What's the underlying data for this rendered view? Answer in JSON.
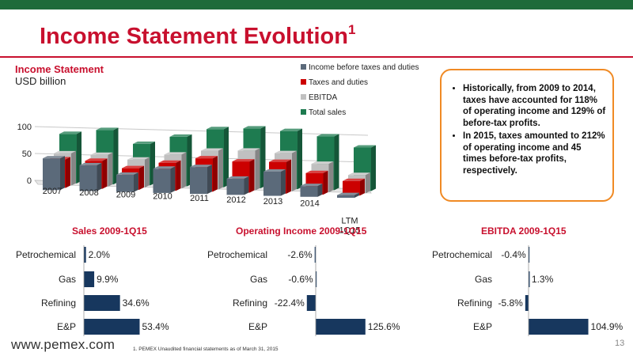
{
  "slide": {
    "title": "Income Statement Evolution",
    "title_superscript": "1",
    "footer_url": "www.pemex.com",
    "footnote": "1.    PEMEX Unaudited financial statements as of March 31, 2015",
    "page_number": "13"
  },
  "colors": {
    "header_bar": "#1e6b3a",
    "title_red": "#c8102e",
    "callout_border": "#f08a24",
    "bar_navy": "#17375e"
  },
  "callout": {
    "bullets": [
      "Historically, from 2009 to 2014, taxes have accounted for 118% of operating income and 129% of before-tax profits.",
      "In 2015, taxes amounted to 212% of operating income and 45 times before-tax profits, respectively."
    ]
  },
  "chart_data": [
    {
      "type": "bar",
      "subtype": "3d-clustered",
      "title": "Income Statement",
      "ylabel": "USD billion",
      "ylim": [
        0,
        100
      ],
      "yticks": [
        "0",
        "50",
        "100"
      ],
      "categories": [
        "2007",
        "2008",
        "2009",
        "2010",
        "2011",
        "2012",
        "2013",
        "2014",
        "LTM 1Q15"
      ],
      "series": [
        {
          "name": "Income before taxes and duties",
          "color": "#5b6a7a",
          "values": [
            59,
            48,
            32,
            45,
            50,
            30,
            45,
            20,
            5
          ]
        },
        {
          "name": "Taxes and duties",
          "color": "#cc0000",
          "values": [
            53,
            52,
            40,
            52,
            62,
            58,
            59,
            40,
            27
          ]
        },
        {
          "name": "EBITDA",
          "color": "#c0c0c0",
          "values": [
            60,
            59,
            52,
            63,
            72,
            74,
            71,
            53,
            34
          ]
        },
        {
          "name": "Total sales",
          "color": "#1e7b50",
          "values": [
            92,
            101,
            77,
            92,
            108,
            111,
            108,
            100,
            81
          ]
        }
      ],
      "legend_position": "top-right"
    },
    {
      "type": "bar",
      "orientation": "horizontal",
      "title": "Sales 2009-1Q15",
      "categories": [
        "Petrochemical",
        "Gas",
        "Refining",
        "E&P"
      ],
      "values": [
        2.0,
        9.9,
        34.6,
        53.4
      ],
      "labels": [
        "2.0%",
        "9.9%",
        "34.6%",
        "53.4%"
      ]
    },
    {
      "type": "bar",
      "orientation": "horizontal",
      "title": "Operating Income 2009-1Q15",
      "categories": [
        "Petrochemical",
        "Gas",
        "Refining",
        "E&P"
      ],
      "values": [
        -2.6,
        -0.6,
        -22.4,
        125.6
      ],
      "labels": [
        "-2.6%",
        "-0.6%",
        "-22.4%",
        "125.6%"
      ]
    },
    {
      "type": "bar",
      "orientation": "horizontal",
      "title": "EBITDA 2009-1Q15",
      "categories": [
        "Petrochemical",
        "Gas",
        "Refining",
        "E&P"
      ],
      "values": [
        -0.4,
        1.3,
        -5.8,
        104.9
      ],
      "labels": [
        "-0.4%",
        "1.3%",
        "-5.8%",
        "104.9%"
      ]
    }
  ]
}
